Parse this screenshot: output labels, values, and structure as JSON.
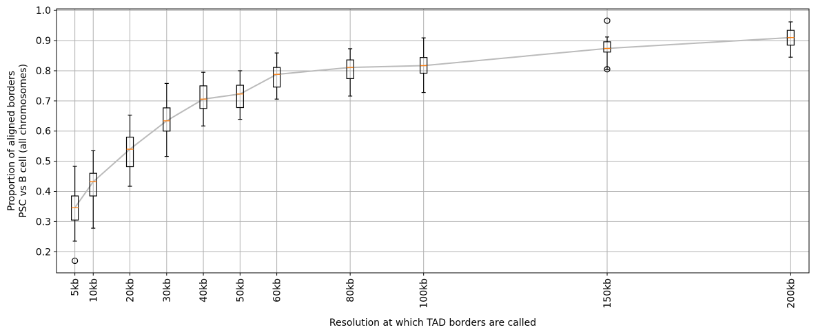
{
  "chart_data": {
    "type": "box",
    "xlabel": "Resolution at which TAD borders are called",
    "ylabel_lines": [
      "Proportion of aligned borders",
      "PSC vs B cell (all chromosomes)"
    ],
    "x_unit": "kb",
    "xlim": [
      0,
      205
    ],
    "ylim": [
      0.13,
      1.005
    ],
    "yticks": [
      0.2,
      0.3,
      0.4,
      0.5,
      0.6,
      0.7,
      0.8,
      0.9,
      1.0
    ],
    "grid": true,
    "categories": [
      "5kb",
      "10kb",
      "20kb",
      "30kb",
      "40kb",
      "50kb",
      "60kb",
      "80kb",
      "100kb",
      "150kb",
      "200kb"
    ],
    "x": [
      5,
      10,
      20,
      30,
      40,
      50,
      60,
      80,
      100,
      150,
      200
    ],
    "boxes": [
      {
        "whislo": 0.235,
        "q1": 0.305,
        "med": 0.346,
        "q3": 0.385,
        "whishi": 0.483,
        "fliers": [
          0.17
        ]
      },
      {
        "whislo": 0.278,
        "q1": 0.385,
        "med": 0.432,
        "q3": 0.46,
        "whishi": 0.535,
        "fliers": []
      },
      {
        "whislo": 0.417,
        "q1": 0.482,
        "med": 0.54,
        "q3": 0.58,
        "whishi": 0.653,
        "fliers": []
      },
      {
        "whislo": 0.516,
        "q1": 0.6,
        "med": 0.634,
        "q3": 0.677,
        "whishi": 0.758,
        "fliers": []
      },
      {
        "whislo": 0.617,
        "q1": 0.675,
        "med": 0.706,
        "q3": 0.75,
        "whishi": 0.795,
        "fliers": []
      },
      {
        "whislo": 0.639,
        "q1": 0.678,
        "med": 0.723,
        "q3": 0.752,
        "whishi": 0.8,
        "fliers": []
      },
      {
        "whislo": 0.706,
        "q1": 0.746,
        "med": 0.788,
        "q3": 0.811,
        "whishi": 0.859,
        "fliers": []
      },
      {
        "whislo": 0.716,
        "q1": 0.774,
        "med": 0.811,
        "q3": 0.836,
        "whishi": 0.873,
        "fliers": []
      },
      {
        "whislo": 0.728,
        "q1": 0.792,
        "med": 0.817,
        "q3": 0.844,
        "whishi": 0.909,
        "fliers": []
      },
      {
        "whislo": 0.804,
        "q1": 0.862,
        "med": 0.874,
        "q3": 0.896,
        "whishi": 0.912,
        "fliers": [
          0.966,
          0.805
        ]
      },
      {
        "whislo": 0.845,
        "q1": 0.885,
        "med": 0.91,
        "q3": 0.934,
        "whishi": 0.962,
        "fliers": []
      }
    ],
    "median_line": [
      0.346,
      0.432,
      0.54,
      0.634,
      0.706,
      0.723,
      0.788,
      0.811,
      0.817,
      0.874,
      0.91
    ],
    "colors": {
      "box_edge": "#000000",
      "median": "#ff7f0e",
      "trend_line": "#bbbbbb",
      "grid": "#b0b0b0"
    }
  }
}
